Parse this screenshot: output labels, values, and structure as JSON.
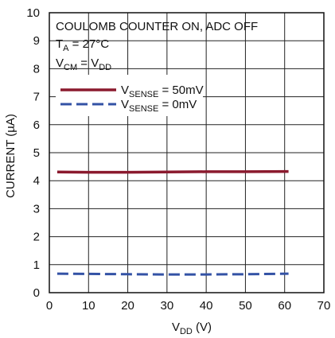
{
  "chart_data": {
    "type": "line",
    "xlabel": {
      "main": "V",
      "sub": "DD",
      "unit": " (V)"
    },
    "ylabel": "CURRENT (µA)",
    "xlim": [
      0,
      70
    ],
    "ylim": [
      0,
      10
    ],
    "xticks": [
      "0",
      "10",
      "20",
      "30",
      "40",
      "50",
      "60",
      "70"
    ],
    "yticks": [
      "0",
      "1",
      "2",
      "3",
      "4",
      "5",
      "6",
      "7",
      "8",
      "9",
      "10"
    ],
    "grid": true,
    "legend_position": "upper-left",
    "annotations": {
      "line1": "COULOMB COUNTER ON, ADC OFF",
      "line2": {
        "pre": "T",
        "sub": "A",
        "post": " = 27°C"
      },
      "line3": {
        "pre": "V",
        "sub1": "CM",
        "mid": " = V",
        "sub2": "DD"
      }
    },
    "series": [
      {
        "name": {
          "pre": "V",
          "sub": "SENSE",
          "post": " = 50mV"
        },
        "color": "#8b1a2e",
        "style": "solid",
        "x": [
          2,
          10,
          20,
          30,
          40,
          50,
          61
        ],
        "y": [
          4.31,
          4.3,
          4.3,
          4.31,
          4.32,
          4.32,
          4.33
        ]
      },
      {
        "name": {
          "pre": "V",
          "sub": "SENSE",
          "post": " = 0mV"
        },
        "color": "#3352a5",
        "style": "dashed",
        "x": [
          2,
          10,
          20,
          30,
          40,
          50,
          61
        ],
        "y": [
          0.68,
          0.67,
          0.66,
          0.65,
          0.65,
          0.66,
          0.68
        ]
      }
    ]
  }
}
